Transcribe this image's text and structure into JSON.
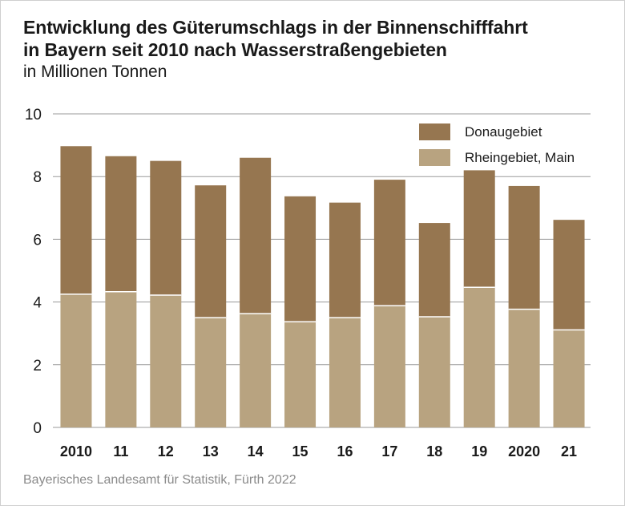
{
  "header": {
    "title_line1": "Entwicklung des Güterumschlags in der Binnenschifffahrt",
    "title_line2": "in Bayern seit 2010 nach Wasserstraßengebieten",
    "subtitle": "in Millionen Tonnen"
  },
  "footer": {
    "source": "Bayerisches Landesamt für Statistik, Fürth 2022"
  },
  "colors": {
    "donau": "#967650",
    "rhein": "#b8a380",
    "grid": "#9a9a9a",
    "bar_separator": "#ffffff"
  },
  "chart_data": {
    "type": "bar",
    "stacked": true,
    "categories": [
      "2010",
      "11",
      "12",
      "13",
      "14",
      "15",
      "16",
      "17",
      "18",
      "19",
      "2020",
      "21"
    ],
    "series": [
      {
        "name": "Rheingebiet, Main",
        "values": [
          4.25,
          4.33,
          4.22,
          3.5,
          3.63,
          3.37,
          3.5,
          3.88,
          3.53,
          4.47,
          3.77,
          3.11
        ]
      },
      {
        "name": "Donaugebiet",
        "values": [
          4.72,
          4.32,
          4.28,
          4.22,
          4.97,
          4.0,
          3.67,
          4.02,
          2.99,
          3.73,
          3.93,
          3.51
        ]
      }
    ],
    "ylim": [
      0,
      10
    ],
    "yticks": [
      "0",
      "2",
      "4",
      "6",
      "8",
      "10"
    ],
    "grid": true,
    "legend_placement": "top-right",
    "legend_order": [
      "Donaugebiet",
      "Rheingebiet, Main"
    ]
  }
}
